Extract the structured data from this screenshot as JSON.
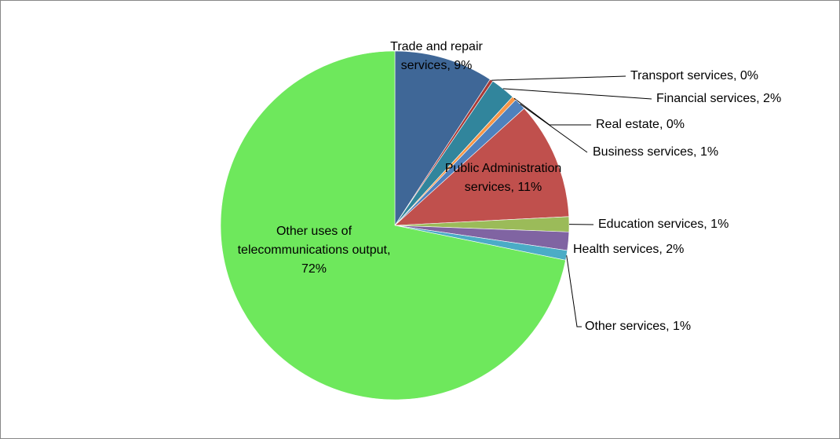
{
  "chart_data": {
    "type": "pie",
    "labels": [
      "Trade and repair services, 9%",
      "Transport services, 0%",
      "Financial services, 2%",
      "Real estate, 0%",
      "Business services, 1%",
      "Public Administration services, 11%",
      "Education services, 1%",
      "Health services, 2%",
      "Other services, 1%",
      "Other uses of telecommunications output, 72%"
    ],
    "values": [
      9.2,
      0.3,
      2.3,
      0.4,
      1.1,
      10.9,
      1.4,
      1.7,
      0.9,
      71.8
    ],
    "colors": [
      "#3f6797",
      "#a83a37",
      "#31859c",
      "#f79646",
      "#4f81bd",
      "#c0504d",
      "#9bbb59",
      "#8064a2",
      "#4bacc6",
      "#6ee85c"
    ]
  }
}
